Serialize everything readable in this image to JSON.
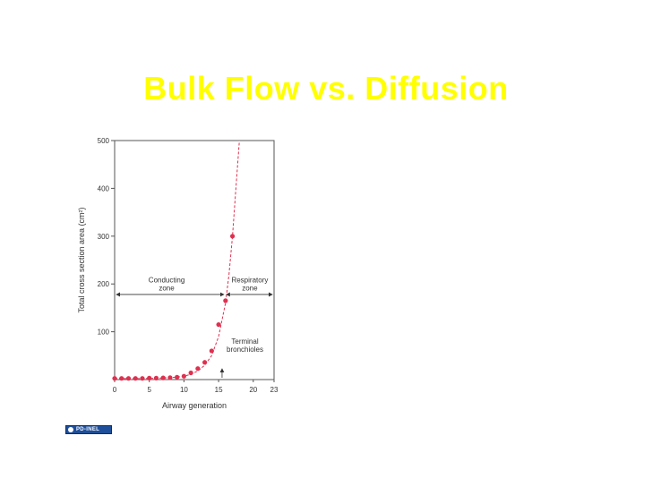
{
  "slide": {
    "title": "Bulk Flow vs. Diffusion"
  },
  "badge": {
    "label": "PD-INEL",
    "icon": "public-domain-icon",
    "color": "#1f4f9a"
  },
  "chart_data": {
    "type": "scatter",
    "xlabel": "Airway generation",
    "ylabel": "Total cross section area (cm²)",
    "xlim": [
      0,
      23
    ],
    "ylim": [
      0,
      500
    ],
    "x_ticks": [
      0,
      5,
      10,
      15,
      20,
      23
    ],
    "y_ticks": [
      100,
      200,
      300,
      400,
      500
    ],
    "grid": false,
    "marker_color": "#e0304f",
    "series": [
      {
        "x": [
          0,
          1,
          2,
          3,
          4,
          5,
          6,
          7,
          8,
          9,
          10,
          11,
          12,
          13,
          14,
          15,
          16,
          17
        ],
        "y": [
          2.5,
          2.5,
          2.5,
          2.5,
          2.5,
          3,
          3,
          3.5,
          4,
          5,
          7,
          14,
          23,
          36,
          60,
          115,
          165,
          300
        ]
      }
    ],
    "curve": {
      "x": [
        0,
        2,
        4,
        6,
        8,
        9,
        10,
        11,
        12,
        13,
        14,
        15,
        16,
        16.5,
        17,
        17.5,
        18
      ],
      "y": [
        2,
        2,
        2.2,
        2.8,
        4,
        5,
        7,
        11,
        18,
        30,
        50,
        90,
        160,
        220,
        300,
        400,
        500
      ]
    },
    "annotations": {
      "conducting": "Conducting\nzone",
      "respiratory": "Respiratory\nzone",
      "terminal": "Terminal\nbronchioles",
      "terminal_x": 15.5,
      "boundary_x": 16
    }
  }
}
